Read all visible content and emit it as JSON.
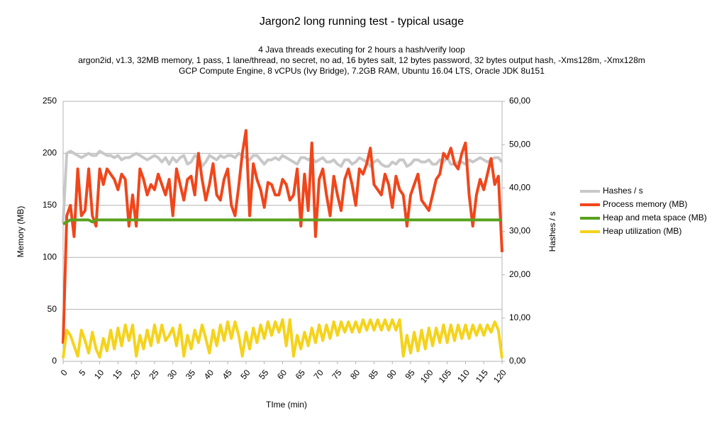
{
  "chart_data": {
    "type": "line",
    "title": "Jargon2 long running test - typical usage",
    "subtitle": [
      "4 Java threads executing for 2 hours a hash/verify loop",
      "argon2id, v1.3, 32MB memory, 1 pass, 1 lane/thread, no secret, no ad, 16 bytes salt, 12 bytes password, 32 bytes output hash, -Xms128m, -Xmx128m",
      "GCP Compute Engine, 8 vCPUs (Ivy Bridge), 7.2GB RAM, Ubuntu 16.04 LTS, Oracle JDK 8u151"
    ],
    "x_label": "TIme (min)",
    "y_label": "Memory (MB)",
    "y2_label": "Hashes / s",
    "x": [
      0,
      1,
      2,
      3,
      4,
      5,
      6,
      7,
      8,
      9,
      10,
      11,
      12,
      13,
      14,
      15,
      16,
      17,
      18,
      19,
      20,
      21,
      22,
      23,
      24,
      25,
      26,
      27,
      28,
      29,
      30,
      31,
      32,
      33,
      34,
      35,
      36,
      37,
      38,
      39,
      40,
      41,
      42,
      43,
      44,
      45,
      46,
      47,
      48,
      49,
      50,
      51,
      52,
      53,
      54,
      55,
      56,
      57,
      58,
      59,
      60,
      61,
      62,
      63,
      64,
      65,
      66,
      67,
      68,
      69,
      70,
      71,
      72,
      73,
      74,
      75,
      76,
      77,
      78,
      79,
      80,
      81,
      82,
      83,
      84,
      85,
      86,
      87,
      88,
      89,
      90,
      91,
      92,
      93,
      94,
      95,
      96,
      97,
      98,
      99,
      100,
      101,
      102,
      103,
      104,
      105,
      106,
      107,
      108,
      109,
      110,
      111,
      112,
      113,
      114,
      115,
      116,
      117,
      118,
      119,
      120
    ],
    "xlim": [
      0,
      120
    ],
    "xticks": [
      0,
      5,
      10,
      15,
      20,
      25,
      30,
      35,
      40,
      45,
      50,
      55,
      60,
      65,
      70,
      75,
      80,
      85,
      90,
      95,
      100,
      105,
      110,
      115,
      120
    ],
    "ylim": [
      0,
      250
    ],
    "yticks": [
      0,
      50,
      100,
      150,
      200,
      250
    ],
    "y2lim": [
      0,
      60
    ],
    "y2ticks": [
      {
        "value": 0,
        "label": "0,00"
      },
      {
        "value": 10,
        "label": "10,00"
      },
      {
        "value": 20,
        "label": "20,00"
      },
      {
        "value": 30,
        "label": "30,00"
      },
      {
        "value": 40,
        "label": "40,00"
      },
      {
        "value": 50,
        "label": "50,00"
      },
      {
        "value": 60,
        "label": "60,00"
      }
    ],
    "grid": true,
    "legend": "right",
    "series": [
      {
        "name": "Hashes / s",
        "color": "#c8c8c8",
        "axis": "y2",
        "values": [
          32,
          48,
          48.5,
          48,
          47.5,
          47,
          47.5,
          48,
          47.5,
          47.5,
          48.5,
          48,
          47.5,
          47.5,
          47,
          47.5,
          46.5,
          47,
          47,
          47.5,
          48,
          47.5,
          47,
          46.5,
          47,
          47.5,
          47,
          46,
          47,
          45.5,
          47,
          46,
          47,
          47.5,
          45.5,
          46,
          47.5,
          47,
          45,
          46,
          47.5,
          47,
          46.5,
          47.5,
          47,
          47.5,
          47.5,
          47,
          48,
          47.5,
          47,
          46.5,
          47.5,
          47.5,
          46.5,
          45.5,
          46.5,
          46.5,
          47,
          46.5,
          47.5,
          47,
          46.5,
          46,
          45.5,
          47,
          47,
          46.5,
          47,
          46,
          46.5,
          47,
          46,
          46,
          46.5,
          45.5,
          45,
          46.5,
          46.5,
          45.5,
          46,
          47,
          46.5,
          46,
          45,
          46,
          46.5,
          45.5,
          45,
          45,
          46,
          45.5,
          46.5,
          46.5,
          45,
          45.5,
          46.5,
          46.5,
          46,
          46,
          46.5,
          45.5,
          45.5,
          46.5,
          46,
          47,
          45.5,
          45.5,
          46,
          46,
          45.5,
          46.5,
          46,
          46.5,
          47,
          46.5,
          46,
          46.5,
          47,
          47,
          46
        ]
      },
      {
        "name": "Process memory (MB)",
        "color": "#f0461b",
        "values": [
          17,
          140,
          150,
          120,
          185,
          140,
          145,
          185,
          140,
          130,
          185,
          170,
          185,
          180,
          175,
          165,
          180,
          175,
          130,
          160,
          130,
          185,
          175,
          160,
          170,
          165,
          180,
          170,
          160,
          175,
          140,
          185,
          170,
          155,
          175,
          178,
          160,
          200,
          175,
          155,
          170,
          190,
          160,
          155,
          175,
          185,
          150,
          140,
          168,
          200,
          222,
          140,
          190,
          175,
          165,
          148,
          172,
          170,
          160,
          160,
          175,
          170,
          155,
          160,
          185,
          130,
          180,
          145,
          210,
          120,
          175,
          185,
          160,
          140,
          178,
          160,
          145,
          175,
          185,
          170,
          150,
          185,
          180,
          190,
          205,
          170,
          165,
          160,
          180,
          170,
          148,
          178,
          165,
          160,
          130,
          160,
          170,
          180,
          155,
          150,
          145,
          160,
          175,
          180,
          200,
          195,
          205,
          190,
          185,
          200,
          210,
          160,
          130,
          160,
          175,
          165,
          180,
          195,
          170,
          178,
          105
        ]
      },
      {
        "name": "Heap and meta space (MB)",
        "color": "#58a21e",
        "values": [
          132,
          134,
          136,
          136,
          136,
          136,
          136,
          136,
          134,
          136,
          136,
          136,
          136,
          136,
          136,
          136,
          136,
          136,
          136,
          136,
          136,
          136,
          136,
          136,
          136,
          136,
          136,
          136,
          136,
          136,
          136,
          136,
          136,
          136,
          136,
          136,
          136,
          136,
          136,
          136,
          136,
          136,
          136,
          136,
          136,
          136,
          136,
          136,
          136,
          136,
          136,
          136,
          136,
          136,
          136,
          136,
          136,
          136,
          136,
          136,
          136,
          136,
          136,
          136,
          136,
          136,
          136,
          136,
          136,
          136,
          136,
          136,
          136,
          136,
          136,
          136,
          136,
          136,
          136,
          136,
          136,
          136,
          136,
          136,
          136,
          136,
          136,
          136,
          136,
          136,
          136,
          136,
          136,
          136,
          136,
          136,
          136,
          136,
          136,
          136,
          136,
          136,
          136,
          136,
          136,
          136,
          136,
          136,
          136,
          136,
          136,
          136,
          136,
          136,
          136,
          136,
          136,
          136,
          136,
          136,
          136
        ]
      },
      {
        "name": "Heap utilization (MB)",
        "color": "#f5d31c",
        "values": [
          3,
          30,
          25,
          15,
          5,
          30,
          20,
          8,
          28,
          12,
          4,
          22,
          10,
          30,
          12,
          32,
          15,
          35,
          20,
          35,
          5,
          25,
          12,
          30,
          15,
          35,
          18,
          35,
          20,
          25,
          32,
          15,
          35,
          5,
          25,
          12,
          30,
          18,
          35,
          22,
          8,
          30,
          15,
          35,
          20,
          38,
          22,
          38,
          25,
          5,
          28,
          12,
          32,
          18,
          35,
          22,
          38,
          25,
          38,
          28,
          40,
          15,
          40,
          5,
          25,
          12,
          28,
          15,
          32,
          18,
          35,
          20,
          35,
          22,
          38,
          25,
          38,
          28,
          38,
          28,
          38,
          28,
          40,
          30,
          40,
          30,
          40,
          30,
          40,
          30,
          40,
          30,
          40,
          5,
          25,
          8,
          28,
          10,
          30,
          12,
          32,
          15,
          32,
          18,
          35,
          18,
          35,
          20,
          35,
          22,
          35,
          22,
          35,
          25,
          35,
          25,
          35,
          28,
          38,
          30,
          3
        ]
      }
    ]
  }
}
